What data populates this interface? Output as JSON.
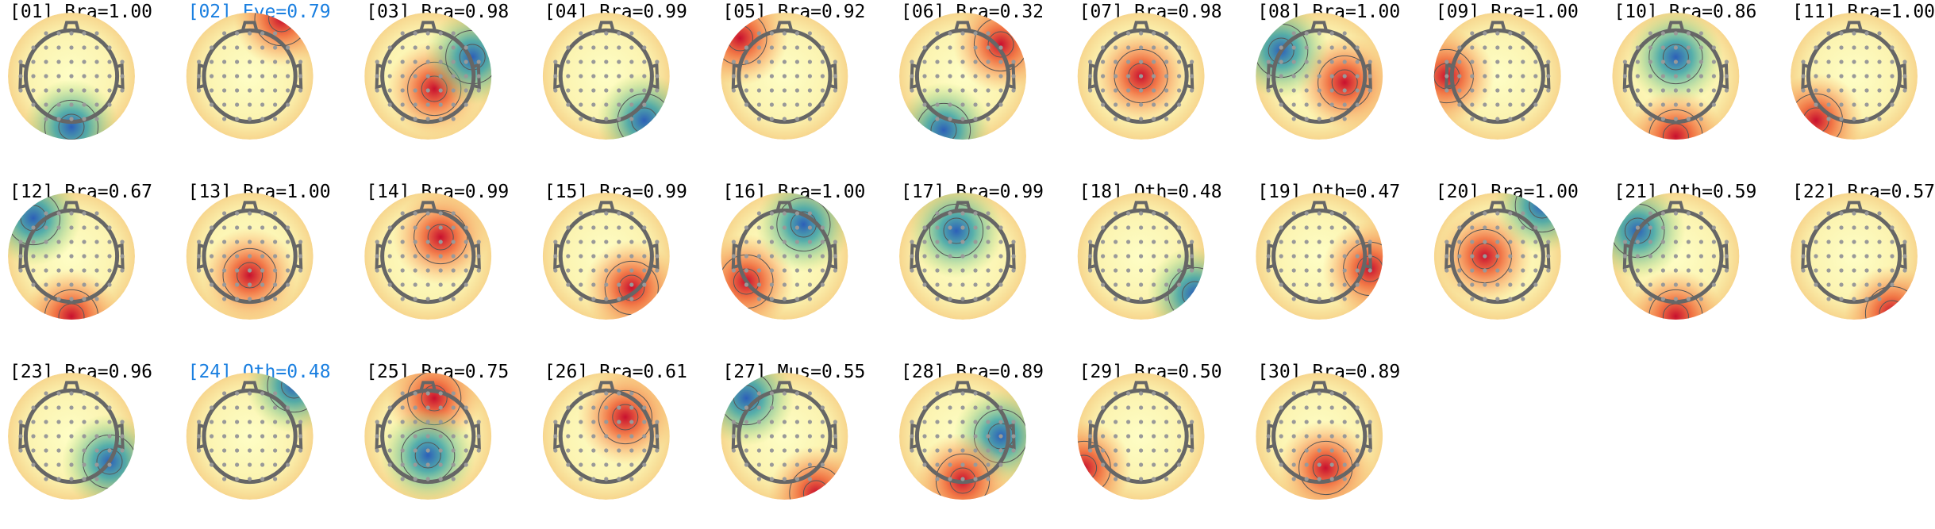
{
  "components": [
    {
      "label": "[01] Bra=1.00",
      "color": "#000000"
    },
    {
      "label": "[02] Eye=0.79",
      "color": "#1a7fe0"
    },
    {
      "label": "[03] Bra=0.98",
      "color": "#000000"
    },
    {
      "label": "[04] Bra=0.99",
      "color": "#000000"
    },
    {
      "label": "[05] Bra=0.92",
      "color": "#000000"
    },
    {
      "label": "[06] Bra=0.32",
      "color": "#000000"
    },
    {
      "label": "[07] Bra=0.98",
      "color": "#000000"
    },
    {
      "label": "[08] Bra=1.00",
      "color": "#000000"
    },
    {
      "label": "[09] Bra=1.00",
      "color": "#000000"
    },
    {
      "label": "[10] Bra=0.86",
      "color": "#000000"
    },
    {
      "label": "[11] Bra=1.00",
      "color": "#000000"
    },
    {
      "label": "[12] Bra=0.67",
      "color": "#000000"
    },
    {
      "label": "[13] Bra=1.00",
      "color": "#000000"
    },
    {
      "label": "[14] Bra=0.99",
      "color": "#000000"
    },
    {
      "label": "[15] Bra=0.99",
      "color": "#000000"
    },
    {
      "label": "[16] Bra=1.00",
      "color": "#000000"
    },
    {
      "label": "[17] Bra=0.99",
      "color": "#000000"
    },
    {
      "label": "[18] Oth=0.48",
      "color": "#000000"
    },
    {
      "label": "[19] Oth=0.47",
      "color": "#000000"
    },
    {
      "label": "[20] Bra=1.00",
      "color": "#000000"
    },
    {
      "label": "[21] Oth=0.59",
      "color": "#000000"
    },
    {
      "label": "[22] Bra=0.57",
      "color": "#000000"
    },
    {
      "label": "[23] Bra=0.96",
      "color": "#000000"
    },
    {
      "label": "[24] Oth=0.48",
      "color": "#1a7fe0"
    },
    {
      "label": "[25] Bra=0.75",
      "color": "#000000"
    },
    {
      "label": "[26] Bra=0.61",
      "color": "#000000"
    },
    {
      "label": "[27] Mus=0.55",
      "color": "#000000"
    },
    {
      "label": "[28] Bra=0.89",
      "color": "#000000"
    },
    {
      "label": "[29] Bra=0.50",
      "color": "#000000"
    },
    {
      "label": "[30] Bra=0.89",
      "color": "#000000"
    }
  ]
}
